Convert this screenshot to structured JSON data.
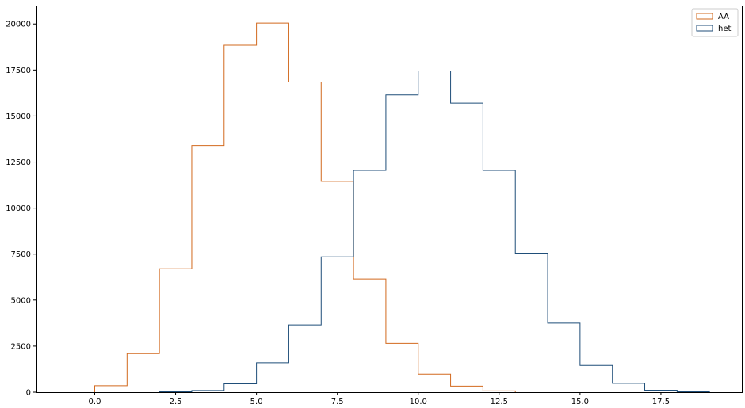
{
  "chart_data": {
    "type": "histogram",
    "style": "step",
    "xlim": [
      -1.8,
      20.0
    ],
    "ylim": [
      0,
      21000
    ],
    "x_ticks": [
      0.0,
      2.5,
      5.0,
      7.5,
      10.0,
      12.5,
      15.0,
      17.5
    ],
    "x_tick_labels": [
      "0.0",
      "2.5",
      "5.0",
      "7.5",
      "10.0",
      "12.5",
      "15.0",
      "17.5"
    ],
    "y_ticks": [
      0,
      2500,
      5000,
      7500,
      10000,
      12500,
      15000,
      17500,
      20000
    ],
    "y_tick_labels": [
      "0",
      "2500",
      "5000",
      "7500",
      "10000",
      "12500",
      "15000",
      "17500",
      "20000"
    ],
    "grid": false,
    "legend_position": "top-right",
    "series": [
      {
        "name": "AA",
        "color": "#d2691e",
        "bin_edges": [
          0,
          1,
          2,
          3,
          4,
          5,
          6,
          7,
          8,
          9,
          10,
          11,
          12,
          13
        ],
        "counts": [
          350,
          2100,
          6700,
          13400,
          18850,
          20050,
          16850,
          11450,
          6150,
          2650,
          980,
          330,
          70
        ]
      },
      {
        "name": "het",
        "color": "#1f4e79",
        "bin_edges": [
          2,
          3,
          4,
          5,
          6,
          7,
          8,
          9,
          10,
          11,
          12,
          13,
          14,
          15,
          16,
          17,
          18,
          19
        ],
        "counts": [
          20,
          90,
          450,
          1600,
          3650,
          7350,
          12050,
          16150,
          17450,
          15700,
          12050,
          7550,
          3750,
          1450,
          480,
          110,
          20
        ]
      }
    ]
  }
}
